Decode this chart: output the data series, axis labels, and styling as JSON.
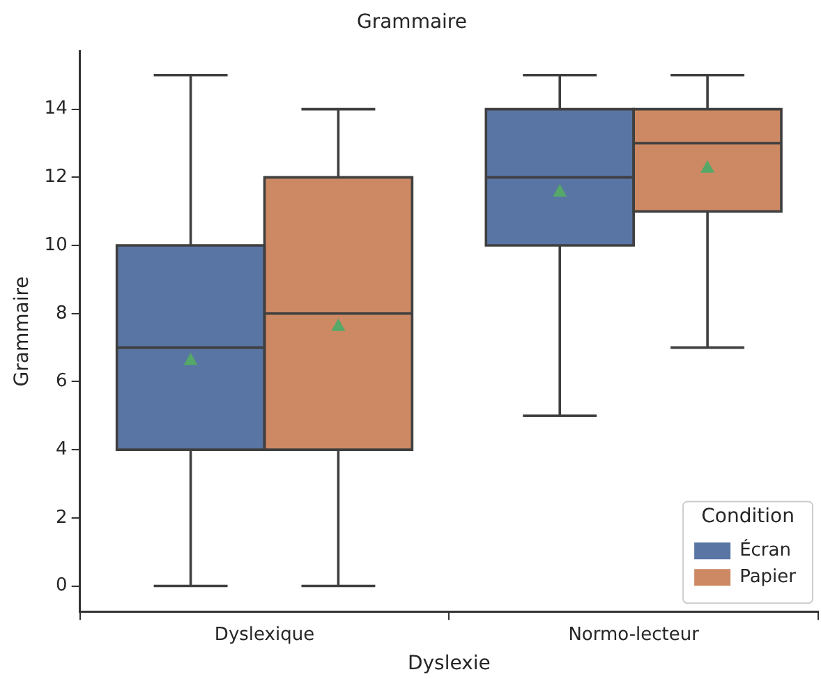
{
  "chart_data": {
    "type": "box",
    "title": "Grammaire",
    "xlabel": "Dyslexie",
    "ylabel": "Grammaire",
    "legend_title": "Condition",
    "legend": "bottom right",
    "categories": [
      "Dyslexique",
      "Normo-lecteur"
    ],
    "series": [
      {
        "name": "Écran",
        "color": "#5975a4",
        "boxes": [
          {
            "low": 0,
            "q1": 4,
            "median": 7,
            "q3": 10,
            "high": 15,
            "mean": 6.65
          },
          {
            "low": 5,
            "q1": 10,
            "median": 12,
            "q3": 14,
            "high": 15,
            "mean": 11.6
          }
        ]
      },
      {
        "name": "Papier",
        "color": "#cc8963",
        "boxes": [
          {
            "low": 0,
            "q1": 4,
            "median": 8,
            "q3": 12,
            "high": 14,
            "mean": 7.65
          },
          {
            "low": 7,
            "q1": 11,
            "median": 13,
            "q3": 14,
            "high": 15,
            "mean": 12.3
          }
        ]
      }
    ],
    "ylim": [
      -0.75,
      15.7
    ],
    "yticks": [
      0,
      2,
      4,
      6,
      8,
      10,
      12,
      14
    ],
    "grid": false,
    "marker": "triangle"
  }
}
